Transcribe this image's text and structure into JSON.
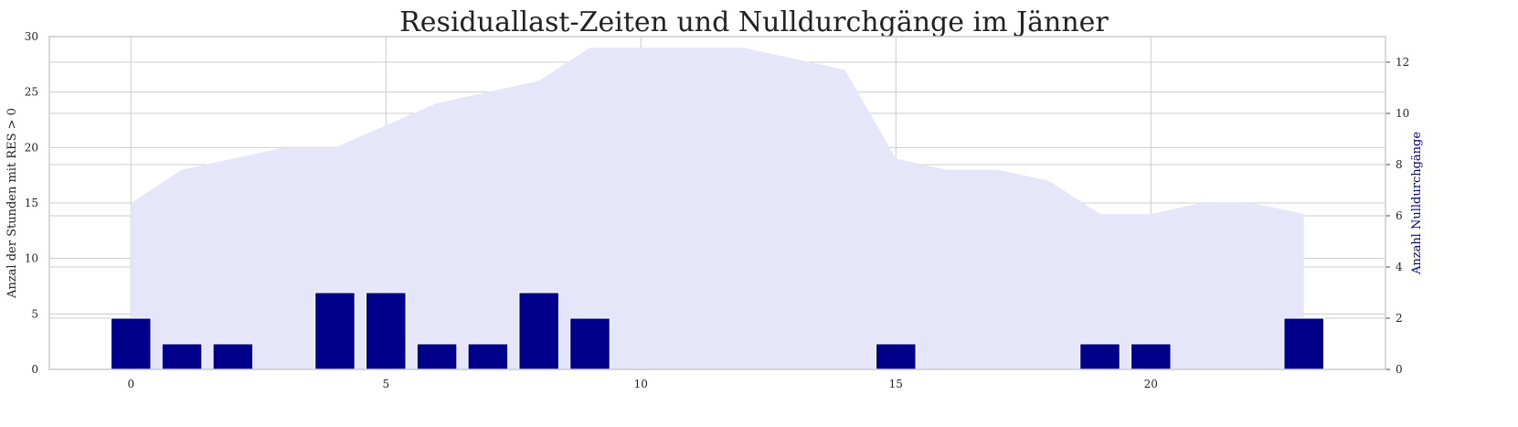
{
  "chart_data": {
    "type": "bar",
    "title": "Residuallast-Zeiten und Nulldurchgänge im Jänner",
    "ylabel": "Anzal der Stunden mit RES > 0",
    "y2label": "Anzahl Nulldurchgänge",
    "xlim": [
      -1.6,
      24.6
    ],
    "ylim": [
      0,
      30
    ],
    "y2lim": [
      0,
      13
    ],
    "x_ticks": [
      "0",
      "5",
      "10",
      "15",
      "20"
    ],
    "y_ticks": [
      "0",
      "5",
      "10",
      "15",
      "20",
      "25",
      "30"
    ],
    "y2_ticks": [
      "0",
      "2",
      "4",
      "6",
      "8",
      "10",
      "12"
    ],
    "grid": true,
    "series": [
      {
        "type": "area",
        "axis": "left",
        "color": "#E6E6FA",
        "x": [
          0,
          1,
          2,
          3,
          4,
          5,
          6,
          7,
          8,
          9,
          10,
          11,
          12,
          13,
          14,
          15,
          16,
          17,
          18,
          19,
          20,
          21,
          22,
          23
        ],
        "values": [
          15,
          18,
          19,
          20,
          20,
          22,
          24,
          25,
          26,
          29,
          29,
          29,
          29,
          28,
          27,
          19,
          18,
          18,
          17,
          14,
          14,
          15,
          15,
          14
        ]
      },
      {
        "type": "bar",
        "axis": "right",
        "color": "#00008B",
        "x": [
          0,
          1,
          2,
          3,
          4,
          5,
          6,
          7,
          8,
          9,
          10,
          11,
          12,
          13,
          14,
          15,
          16,
          17,
          18,
          19,
          20,
          21,
          22,
          23
        ],
        "values": [
          2,
          1,
          1,
          0,
          3,
          3,
          1,
          1,
          3,
          2,
          0,
          0,
          0,
          0,
          0,
          1,
          0,
          0,
          0,
          1,
          1,
          0,
          0,
          2
        ]
      }
    ]
  }
}
